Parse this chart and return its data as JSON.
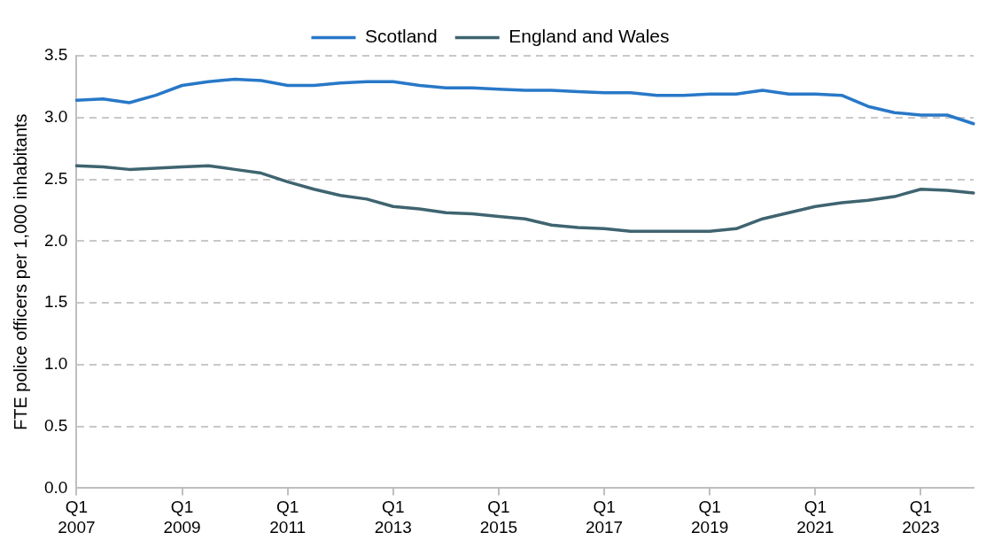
{
  "chart_data": {
    "type": "line",
    "ylabel": "FTE police officers per 1,000 inhabitants",
    "categories": [
      "Q1 2007",
      null,
      null,
      null,
      "Q1 2009",
      null,
      null,
      null,
      "Q1 2011",
      null,
      null,
      null,
      "Q1 2013",
      null,
      null,
      null,
      "Q1 2015",
      null,
      null,
      null,
      "Q1 2017",
      null,
      null,
      null,
      "Q1 2019",
      null,
      null,
      null,
      "Q1 2021",
      null,
      null,
      null,
      "Q1 2023",
      null,
      null
    ],
    "series": [
      {
        "name": "Scotland",
        "color": "#2878c8",
        "values": [
          3.14,
          3.15,
          3.12,
          3.18,
          3.26,
          3.29,
          3.31,
          3.3,
          3.26,
          3.26,
          3.28,
          3.29,
          3.29,
          3.26,
          3.24,
          3.24,
          3.23,
          3.22,
          3.22,
          3.21,
          3.2,
          3.2,
          3.18,
          3.18,
          3.19,
          3.19,
          3.22,
          3.19,
          3.19,
          3.18,
          3.09,
          3.04,
          3.02,
          3.02,
          2.95
        ]
      },
      {
        "name": "England and Wales",
        "color": "#3f6470",
        "values": [
          2.61,
          2.6,
          2.58,
          2.59,
          2.6,
          2.61,
          2.58,
          2.55,
          2.48,
          2.42,
          2.37,
          2.34,
          2.28,
          2.26,
          2.23,
          2.22,
          2.2,
          2.18,
          2.13,
          2.11,
          2.1,
          2.08,
          2.08,
          2.08,
          2.08,
          2.1,
          2.18,
          2.23,
          2.28,
          2.31,
          2.33,
          2.36,
          2.42,
          2.41,
          2.39
        ]
      }
    ],
    "ylim": [
      0,
      3.5
    ],
    "yticks": [
      {
        "value": 0,
        "label": "0.0"
      },
      {
        "value": 0.5,
        "label": "0.5"
      },
      {
        "value": 1,
        "label": "1.0"
      },
      {
        "value": 1.5,
        "label": "1.5"
      },
      {
        "value": 2,
        "label": "2.0"
      },
      {
        "value": 2.5,
        "label": "2.5"
      },
      {
        "value": 3,
        "label": "3.0"
      },
      {
        "value": 3.5,
        "label": "3.5"
      }
    ],
    "grid": "y",
    "legend": "top",
    "marker": "none",
    "line_style": "solid"
  }
}
